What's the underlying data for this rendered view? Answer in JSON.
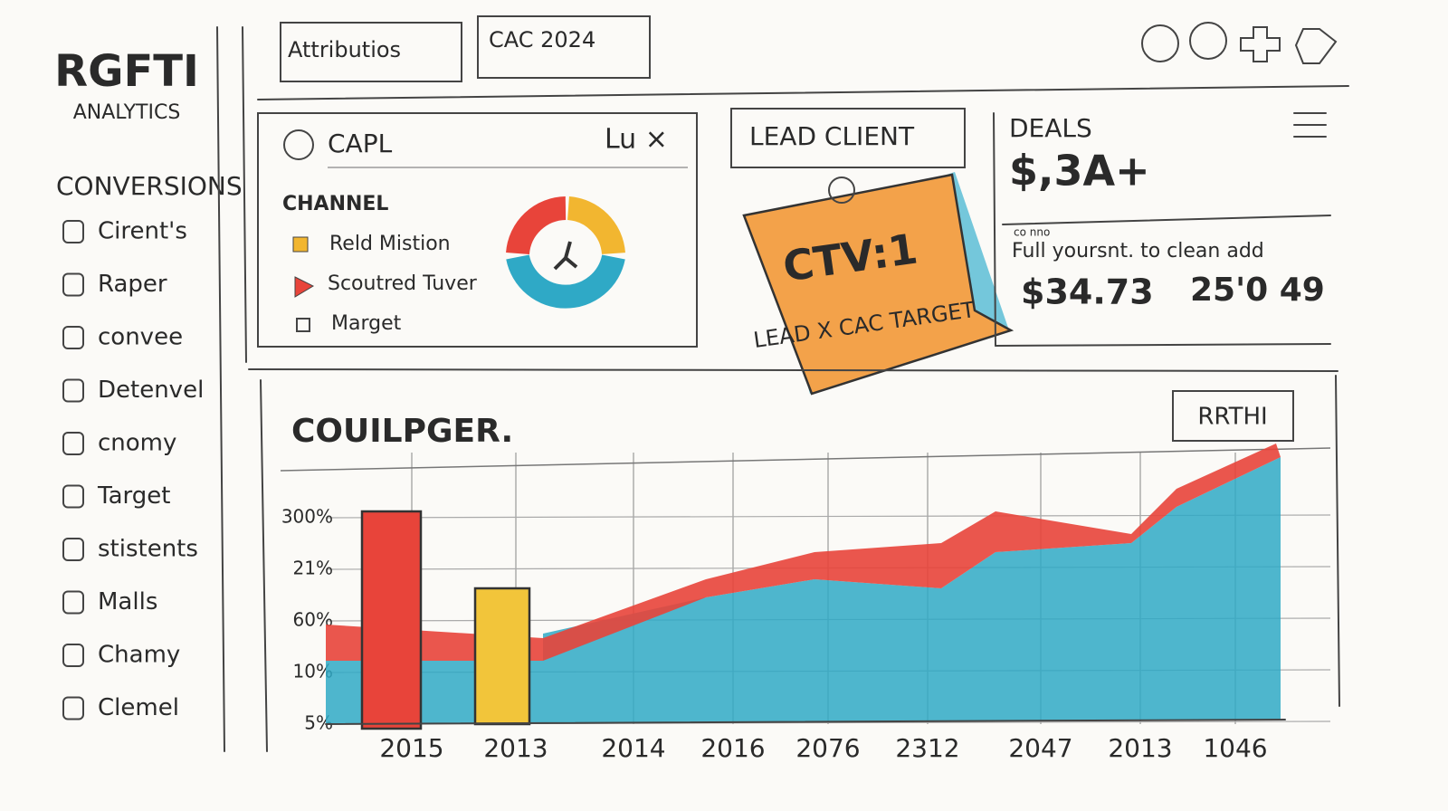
{
  "sidebar": {
    "logo": "RGFTI",
    "subtitle": "ANALYTICS",
    "section": "CONVERSIONS",
    "items": [
      "Cirent's",
      "Raper",
      "convee",
      "Detenvel",
      "cnomy",
      "Target",
      "stistents",
      "Malls",
      "Chamy",
      "Clemel"
    ]
  },
  "tabs": [
    "Attributios",
    "CAC 2024"
  ],
  "channel_card": {
    "title": "CAPL",
    "controls": "Lu ×",
    "heading": "CHANNEL",
    "legend": [
      "Reld Mistion",
      "Scoutred Tuver",
      "Marget"
    ]
  },
  "lead_card": {
    "title": "LEAD CLIENT",
    "note_title": "CTV:1",
    "note_text": "LEAD X CAC TARGET"
  },
  "deals_card": {
    "title": "DEALS",
    "value": "$,3A+",
    "caption": "co nno",
    "description": "Full yoursnt. to clean add",
    "stat_1": "$34.73",
    "stat_2": "25'0 49"
  },
  "chart": {
    "title": "COUILPGER.",
    "button": "RRTHI",
    "y_labels": [
      "300%",
      "21%",
      "60%",
      "10%",
      "5%"
    ],
    "x_labels": [
      "2015",
      "2013",
      "2014",
      "2016",
      "2076",
      "2312",
      "2047",
      "2013",
      "1046"
    ]
  }
}
